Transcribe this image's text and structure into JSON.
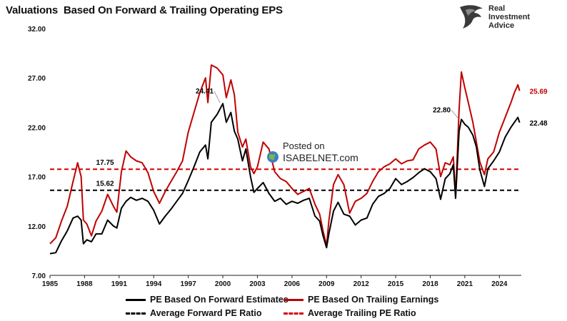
{
  "title": "Valuations  Based On Forward & Trailing Operating EPS",
  "logo": {
    "line1": "Real",
    "line2": "Investment",
    "line3": "Advice"
  },
  "watermark": {
    "line1": "Posted on",
    "line2": "ISABELNET.com"
  },
  "chart_data": {
    "type": "line",
    "ylim": [
      7,
      32
    ],
    "xlim": [
      1985,
      2025.9
    ],
    "yticks": [
      "7.00",
      "12.00",
      "17.00",
      "22.00",
      "27.00",
      "32.00"
    ],
    "ytick_values": [
      7,
      12,
      17,
      22,
      27,
      32
    ],
    "xticks": [
      "1985",
      "1988",
      "1991",
      "1994",
      "1997",
      "2000",
      "2003",
      "2006",
      "2009",
      "2012",
      "2015",
      "2018",
      "2021",
      "2024"
    ],
    "xtick_values": [
      1985,
      1988,
      1991,
      1994,
      1997,
      2000,
      2003,
      2006,
      2009,
      2012,
      2015,
      2018,
      2021,
      2024
    ],
    "grid": false,
    "legend_position": "bottom",
    "colors": {
      "forward": "#000000",
      "trailing": "#c00000",
      "avg_forward": "#000000",
      "avg_trailing": "#d60000"
    },
    "series": [
      {
        "name": "PE Based On Forward Estimates",
        "x": [
          1985.0,
          1985.5,
          1986.0,
          1986.5,
          1987.0,
          1987.4,
          1987.7,
          1987.9,
          1988.2,
          1988.6,
          1989.0,
          1989.5,
          1990.0,
          1990.5,
          1990.8,
          1991.2,
          1991.6,
          1992.0,
          1992.5,
          1993.0,
          1993.5,
          1994.0,
          1994.5,
          1995.0,
          1995.5,
          1996.0,
          1996.5,
          1997.0,
          1997.5,
          1998.0,
          1998.5,
          1998.7,
          1999.0,
          1999.5,
          2000.0,
          2000.3,
          2000.7,
          2001.0,
          2001.3,
          2001.7,
          2002.0,
          2002.4,
          2002.7,
          2003.0,
          2003.5,
          2004.0,
          2004.5,
          2005.0,
          2005.5,
          2006.0,
          2006.5,
          2007.0,
          2007.5,
          2008.0,
          2008.4,
          2008.7,
          2009.0,
          2009.2,
          2009.6,
          2010.0,
          2010.5,
          2011.0,
          2011.5,
          2012.0,
          2012.5,
          2013.0,
          2013.5,
          2014.0,
          2014.5,
          2015.0,
          2015.5,
          2016.0,
          2016.5,
          2017.0,
          2017.5,
          2018.0,
          2018.5,
          2018.9,
          2019.3,
          2019.7,
          2020.0,
          2020.2,
          2020.5,
          2020.7,
          2021.0,
          2021.3,
          2021.7,
          2022.0,
          2022.3,
          2022.7,
          2023.0,
          2023.5,
          2024.0,
          2024.5,
          2025.0,
          2025.3,
          2025.6,
          2025.75
        ],
        "values": [
          9.2,
          9.3,
          10.5,
          11.5,
          12.8,
          13.0,
          12.6,
          10.2,
          10.6,
          10.4,
          11.2,
          11.2,
          12.6,
          12.0,
          11.8,
          13.8,
          14.5,
          14.9,
          14.6,
          14.8,
          14.5,
          13.6,
          12.2,
          13.0,
          13.7,
          14.5,
          15.3,
          16.6,
          18.0,
          19.5,
          20.2,
          18.8,
          22.5,
          23.3,
          24.4,
          22.5,
          23.5,
          21.6,
          20.8,
          18.6,
          19.8,
          17.0,
          15.4,
          15.8,
          16.4,
          15.3,
          14.5,
          14.8,
          14.2,
          14.5,
          14.3,
          14.6,
          14.8,
          13.0,
          12.5,
          11.0,
          9.8,
          11.2,
          13.5,
          14.4,
          13.2,
          13.0,
          12.1,
          12.6,
          12.8,
          14.2,
          15.0,
          15.3,
          15.8,
          16.8,
          16.2,
          16.5,
          16.9,
          17.4,
          17.8,
          17.5,
          16.8,
          14.7,
          16.8,
          17.3,
          18.2,
          14.8,
          21.6,
          22.8,
          22.3,
          22.0,
          21.2,
          20.0,
          17.7,
          16.0,
          17.8,
          18.6,
          19.5,
          21.0,
          22.0,
          22.5,
          23.0,
          22.48
        ]
      },
      {
        "name": "PE Based On Trailing Earnings",
        "x": [
          1985.0,
          1985.5,
          1986.0,
          1986.5,
          1987.0,
          1987.4,
          1987.7,
          1987.9,
          1988.2,
          1988.6,
          1989.0,
          1989.5,
          1990.0,
          1990.5,
          1990.8,
          1991.2,
          1991.6,
          1992.0,
          1992.5,
          1993.0,
          1993.5,
          1994.0,
          1994.5,
          1995.0,
          1995.5,
          1996.0,
          1996.5,
          1997.0,
          1997.5,
          1998.0,
          1998.5,
          1998.7,
          1999.0,
          1999.5,
          2000.0,
          2000.3,
          2000.7,
          2001.0,
          2001.3,
          2001.7,
          2002.0,
          2002.4,
          2002.7,
          2003.0,
          2003.5,
          2004.0,
          2004.5,
          2005.0,
          2005.5,
          2006.0,
          2006.5,
          2007.0,
          2007.5,
          2008.0,
          2008.4,
          2008.7,
          2009.0,
          2009.2,
          2009.6,
          2010.0,
          2010.5,
          2011.0,
          2011.5,
          2012.0,
          2012.5,
          2013.0,
          2013.5,
          2014.0,
          2014.5,
          2015.0,
          2015.5,
          2016.0,
          2016.5,
          2017.0,
          2017.5,
          2018.0,
          2018.5,
          2018.9,
          2019.3,
          2019.7,
          2020.0,
          2020.2,
          2020.5,
          2020.7,
          2021.0,
          2021.3,
          2021.7,
          2022.0,
          2022.3,
          2022.7,
          2023.0,
          2023.5,
          2024.0,
          2024.5,
          2025.0,
          2025.3,
          2025.6,
          2025.75
        ],
        "values": [
          10.2,
          10.8,
          12.5,
          14.0,
          16.5,
          18.4,
          17.0,
          12.6,
          12.2,
          11.0,
          12.5,
          13.5,
          15.2,
          14.0,
          13.4,
          17.5,
          19.6,
          19.0,
          18.6,
          18.4,
          17.4,
          15.5,
          14.3,
          15.5,
          16.5,
          17.5,
          18.6,
          21.5,
          23.5,
          25.5,
          27.0,
          24.5,
          28.3,
          28.0,
          27.3,
          25.0,
          26.8,
          25.3,
          21.5,
          20.0,
          20.8,
          18.0,
          17.3,
          18.0,
          20.5,
          19.8,
          17.5,
          16.8,
          16.5,
          15.8,
          15.2,
          15.5,
          15.8,
          14.2,
          13.2,
          11.5,
          10.0,
          12.5,
          16.2,
          17.2,
          16.2,
          13.3,
          14.5,
          14.8,
          15.3,
          16.5,
          17.5,
          18.0,
          18.3,
          18.8,
          18.3,
          18.6,
          18.7,
          19.8,
          20.2,
          20.5,
          19.8,
          17.0,
          18.4,
          18.2,
          19.0,
          15.0,
          23.8,
          27.6,
          26.0,
          24.5,
          22.5,
          20.5,
          18.5,
          17.2,
          18.8,
          19.5,
          21.5,
          23.0,
          24.5,
          25.5,
          26.3,
          25.69
        ]
      },
      {
        "name": "Average Forward PE Ratio",
        "value": 15.62
      },
      {
        "name": "Average Trailing PE Ratio",
        "value": 17.75
      }
    ],
    "annotations": [
      {
        "text": "24.41",
        "x": 2000.0,
        "y": 24.41,
        "color": "#000000"
      },
      {
        "text": "22.80",
        "x": 2020.7,
        "y": 22.8,
        "color": "#000000"
      },
      {
        "text": "17.75",
        "x": 1989.0,
        "y": 17.75,
        "color": "#000000"
      },
      {
        "text": "15.62",
        "x": 1989.0,
        "y": 15.62,
        "color": "#000000"
      },
      {
        "text": "25.69",
        "x": 2025.75,
        "y": 25.69,
        "color": "#c00000"
      },
      {
        "text": "22.48",
        "x": 2025.75,
        "y": 22.48,
        "color": "#000000"
      }
    ]
  }
}
